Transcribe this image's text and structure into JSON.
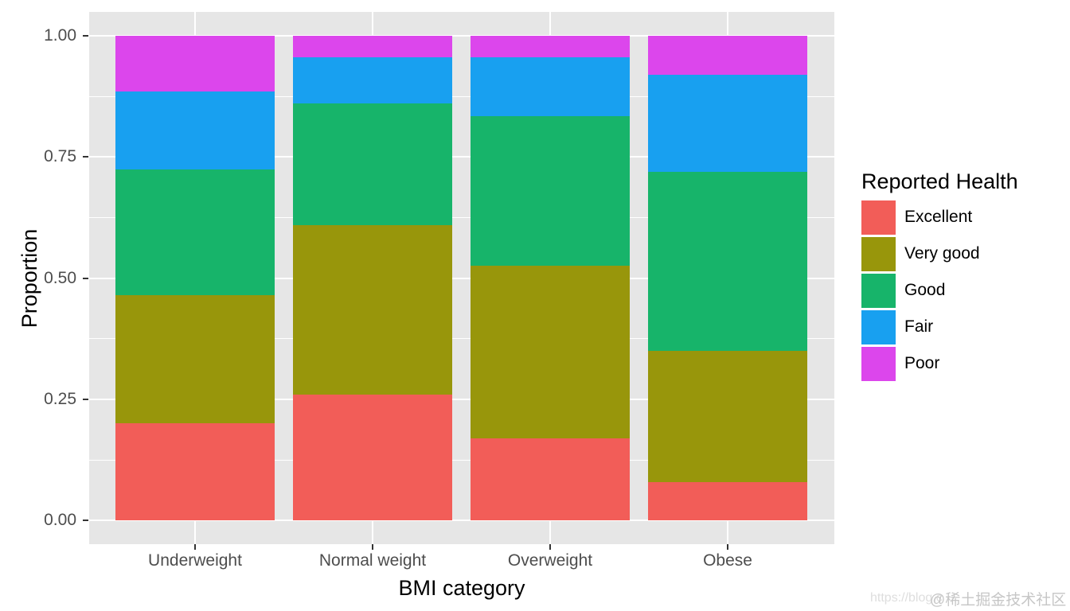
{
  "chart_data": {
    "type": "bar",
    "subtype": "stacked-proportion",
    "title": "",
    "xlabel": "BMI category",
    "ylabel": "Proportion",
    "categories": [
      "Underweight",
      "Normal weight",
      "Overweight",
      "Obese"
    ],
    "series": [
      {
        "name": "Excellent",
        "color": "#F25D58",
        "values": [
          0.2,
          0.26,
          0.17,
          0.08
        ]
      },
      {
        "name": "Very good",
        "color": "#98960B",
        "values": [
          0.265,
          0.35,
          0.355,
          0.27
        ]
      },
      {
        "name": "Good",
        "color": "#17B46A",
        "values": [
          0.26,
          0.25,
          0.31,
          0.37
        ]
      },
      {
        "name": "Fair",
        "color": "#18A0F0",
        "values": [
          0.16,
          0.095,
          0.12,
          0.2
        ]
      },
      {
        "name": "Poor",
        "color": "#DC46EC",
        "values": [
          0.115,
          0.045,
          0.045,
          0.08
        ]
      }
    ],
    "stack_order": "Excellent at bottom, Poor at top",
    "y_ticks": [
      "0.00",
      "0.25",
      "0.50",
      "0.75",
      "1.00"
    ],
    "y_tick_values": [
      0,
      0.25,
      0.5,
      0.75,
      1.0
    ],
    "y_minor_values": [
      0.125,
      0.375,
      0.625,
      0.875
    ],
    "ylim": [
      0,
      1
    ],
    "grid": "white major and minor horizontal lines, white vertical lines at category centers, on gray panel",
    "legend": {
      "title": "Reported Health",
      "position": "right",
      "entries": [
        "Excellent",
        "Very good",
        "Good",
        "Fair",
        "Poor"
      ]
    }
  },
  "colors": {
    "panel_background": "#E6E6E6",
    "gridline": "#FFFFFF",
    "axis_text": "#4D4D4D",
    "axis_title": "#000000",
    "tick_mark": "#333333"
  },
  "watermark": {
    "url_text": "https://blog.c",
    "handle_text": "@稀土掘金技术社区"
  }
}
